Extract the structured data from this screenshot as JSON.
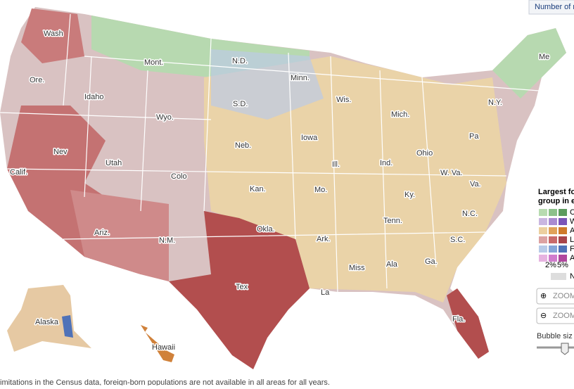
{
  "tab": "Number of r",
  "states": [
    "Wash",
    "Mont.",
    "N.D.",
    "Minn.",
    "Me",
    "Ore.",
    "Idaho",
    "S.D.",
    "Wis.",
    "Mich.",
    "N.Y.",
    "Wyo.",
    "Neb.",
    "Iowa",
    "Pa",
    "Nev",
    "Utah",
    "Ill.",
    "Ind.",
    "Ohio",
    "Calif.",
    "Colo",
    "W. Va.",
    "Va.",
    "Kan.",
    "Mo.",
    "Ky.",
    "Tenn.",
    "N.C.",
    "Ariz.",
    "Okla.",
    "N.M.",
    "Ark.",
    "S.C.",
    "Miss",
    "Ala",
    "Ga.",
    "Tex",
    "La",
    "Fla.",
    "Alaska",
    "Hawaii"
  ],
  "legend": {
    "title_lines": [
      "Largest for",
      "group in ea"
    ],
    "rows": [
      "C",
      "W",
      "A",
      "L",
      "F",
      "A"
    ],
    "scale": [
      "2%",
      "5%"
    ],
    "none": "N"
  },
  "zoom_in": "ZOOM",
  "zoom_out": "ZOOM",
  "bubble_size": "Bubble siz",
  "footnote": "imitations in the Census data, foreign-born populations are not available in all areas for all years."
}
